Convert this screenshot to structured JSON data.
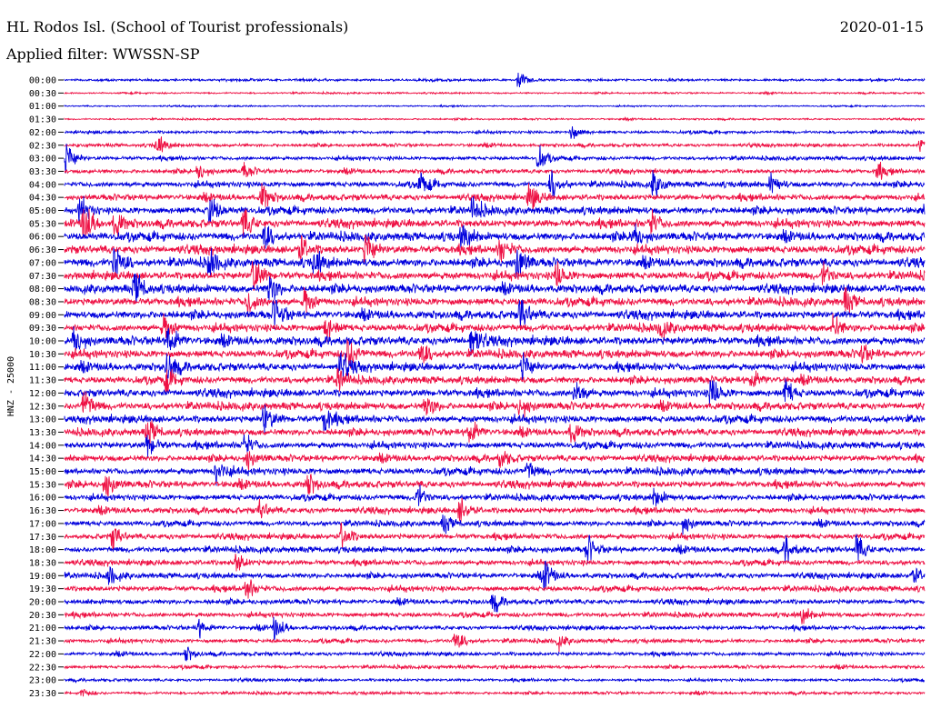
{
  "header": {
    "station": "HL Rodos Isl. (School of Tourist professionals)",
    "date": "2020-01-15",
    "filter_label": "Applied filter: WWSSN-SP"
  },
  "chart_data": {
    "type": "line",
    "title": "HL Rodos Isl. (School of Tourist professionals)",
    "ylabel": "HNZ - 25000",
    "xlabel": "",
    "trace_colors": [
      "#0000dd",
      "#ee1144"
    ],
    "rows": [
      "00:00",
      "00:30",
      "01:00",
      "01:30",
      "02:00",
      "02:30",
      "03:00",
      "03:30",
      "04:00",
      "04:30",
      "05:00",
      "05:30",
      "06:00",
      "06:30",
      "07:00",
      "07:30",
      "08:00",
      "08:30",
      "09:00",
      "09:30",
      "10:00",
      "10:30",
      "11:00",
      "11:30",
      "12:00",
      "12:30",
      "13:00",
      "13:30",
      "14:00",
      "14:30",
      "15:00",
      "15:30",
      "16:00",
      "16:30",
      "17:00",
      "17:30",
      "18:00",
      "18:30",
      "19:00",
      "19:30",
      "20:00",
      "20:30",
      "21:00",
      "21:30",
      "22:00",
      "22:30",
      "23:00",
      "23:30"
    ],
    "amplitude": [
      0.18,
      0.14,
      0.12,
      0.14,
      0.25,
      0.28,
      0.32,
      0.36,
      0.48,
      0.52,
      0.62,
      0.66,
      0.7,
      0.7,
      0.72,
      0.68,
      0.7,
      0.66,
      0.68,
      0.64,
      0.72,
      0.66,
      0.66,
      0.6,
      0.64,
      0.62,
      0.62,
      0.58,
      0.56,
      0.54,
      0.58,
      0.58,
      0.5,
      0.5,
      0.46,
      0.48,
      0.5,
      0.46,
      0.46,
      0.46,
      0.42,
      0.4,
      0.36,
      0.34,
      0.32,
      0.28,
      0.24,
      0.24
    ],
    "events": [
      [
        [
          570,
          1.8
        ]
      ],
      [],
      [],
      [],
      [
        [
          628,
          1.6
        ]
      ],
      [
        [
          173,
          2.4
        ],
        [
          1012,
          1.6
        ]
      ],
      [
        [
          72,
          3.2
        ],
        [
          592,
          2.2
        ]
      ],
      [
        [
          218,
          1.6
        ],
        [
          268,
          1.5
        ],
        [
          965,
          1.5
        ]
      ],
      [
        [
          462,
          2.2
        ],
        [
          606,
          2.0
        ],
        [
          718,
          2.0
        ],
        [
          848,
          1.5
        ]
      ],
      [
        [
          288,
          1.8
        ],
        [
          582,
          2.2
        ]
      ],
      [
        [
          88,
          2.2
        ],
        [
          230,
          2.0
        ],
        [
          520,
          1.6
        ]
      ],
      [
        [
          92,
          2.6
        ],
        [
          126,
          1.6
        ],
        [
          268,
          1.7
        ],
        [
          715,
          1.5
        ]
      ],
      [
        [
          290,
          1.6
        ],
        [
          508,
          1.6
        ],
        [
          696,
          1.6
        ]
      ],
      [
        [
          402,
          1.9
        ],
        [
          330,
          1.5
        ],
        [
          550,
          1.5
        ]
      ],
      [
        [
          126,
          2.4
        ],
        [
          230,
          1.6
        ],
        [
          346,
          1.6
        ],
        [
          568,
          2.4
        ]
      ],
      [
        [
          278,
          2.2
        ],
        [
          612,
          1.5
        ],
        [
          905,
          1.4
        ]
      ],
      [
        [
          148,
          2.2
        ],
        [
          296,
          1.9
        ]
      ],
      [
        [
          272,
          1.6
        ],
        [
          335,
          1.6
        ],
        [
          930,
          1.4
        ]
      ],
      [
        [
          302,
          2.2
        ],
        [
          572,
          2.4
        ]
      ],
      [
        [
          180,
          1.6
        ],
        [
          358,
          1.6
        ],
        [
          726,
          1.5
        ],
        [
          916,
          1.5
        ]
      ],
      [
        [
          80,
          2.0
        ],
        [
          185,
          2.0
        ],
        [
          518,
          2.0
        ]
      ],
      [
        [
          382,
          2.2
        ],
        [
          462,
          1.6
        ],
        [
          946,
          1.4
        ]
      ],
      [
        [
          184,
          2.0
        ],
        [
          374,
          2.0
        ],
        [
          574,
          1.6
        ]
      ],
      [
        [
          182,
          1.5
        ],
        [
          372,
          1.5
        ],
        [
          826,
          1.4
        ]
      ],
      [
        [
          632,
          1.7
        ],
        [
          782,
          1.9
        ],
        [
          864,
          1.5
        ]
      ],
      [
        [
          92,
          2.2
        ],
        [
          468,
          1.6
        ],
        [
          572,
          1.4
        ]
      ],
      [
        [
          290,
          2.0
        ],
        [
          356,
          1.7
        ]
      ],
      [
        [
          162,
          2.0
        ],
        [
          516,
          2.0
        ],
        [
          628,
          1.4
        ]
      ],
      [
        [
          162,
          1.6
        ],
        [
          268,
          1.6
        ]
      ],
      [
        [
          272,
          1.4
        ],
        [
          550,
          1.3
        ]
      ],
      [
        [
          238,
          1.6
        ],
        [
          580,
          1.3
        ]
      ],
      [
        [
          116,
          1.9
        ],
        [
          338,
          1.4
        ]
      ],
      [
        [
          458,
          2.0
        ],
        [
          720,
          1.3
        ]
      ],
      [
        [
          506,
          2.0
        ],
        [
          286,
          1.4
        ]
      ],
      [
        [
          488,
          1.4
        ],
        [
          752,
          1.4
        ]
      ],
      [
        [
          124,
          1.7
        ],
        [
          376,
          2.0
        ]
      ],
      [
        [
          646,
          2.0
        ],
        [
          864,
          2.0
        ],
        [
          942,
          2.0
        ]
      ],
      [
        [
          260,
          1.4
        ]
      ],
      [
        [
          120,
          1.4
        ],
        [
          598,
          2.2
        ],
        [
          1004,
          1.3
        ]
      ],
      [
        [
          270,
          2.0
        ]
      ],
      [
        [
          542,
          1.7
        ]
      ],
      [
        [
          882,
          1.3
        ]
      ],
      [
        [
          218,
          1.6
        ],
        [
          302,
          2.0
        ]
      ],
      [
        [
          500,
          2.2
        ],
        [
          614,
          1.4
        ]
      ],
      [
        [
          204,
          1.3
        ]
      ],
      [],
      [],
      [
        [
          90,
          1.2
        ]
      ]
    ]
  }
}
